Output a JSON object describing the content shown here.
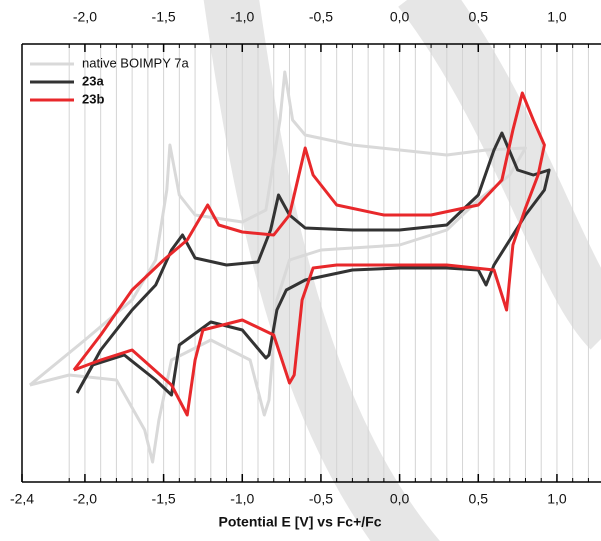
{
  "chart_data": {
    "type": "line",
    "x_label": "Potential E [V] vs Fc+/Fc",
    "xlim": [
      -2.4,
      1.28
    ],
    "ylim": [
      0,
      438
    ],
    "xticks": [
      {
        "value": -2.4,
        "label": "-2,4"
      },
      {
        "value": -2.0,
        "label": "-2,0"
      },
      {
        "value": -1.5,
        "label": "-1,5"
      },
      {
        "value": -1.0,
        "label": "-1,0"
      },
      {
        "value": -0.5,
        "label": "-0,5"
      },
      {
        "value": 0.0,
        "label": "0,0"
      },
      {
        "value": 0.5,
        "label": "0,5"
      },
      {
        "value": 1.0,
        "label": "1,0"
      }
    ],
    "top_xticks": [
      {
        "value": -2.0,
        "label": "-2,0"
      },
      {
        "value": -1.5,
        "label": "-1,5"
      },
      {
        "value": -1.0,
        "label": "-1,0"
      },
      {
        "value": -0.5,
        "label": "-0,5"
      },
      {
        "value": 0.0,
        "label": "0,0"
      },
      {
        "value": 0.5,
        "label": "0,5"
      },
      {
        "value": 1.0,
        "label": "1,0"
      }
    ],
    "grid_x": [
      -2.1,
      -2.0,
      -1.9,
      -1.8,
      -1.7,
      -1.6,
      -1.5,
      -1.4,
      -1.3,
      -1.2,
      -1.1,
      -1.0,
      -0.9,
      -0.8,
      -0.7,
      -0.6,
      -0.5,
      -0.4,
      -0.3,
      -0.2,
      -0.1,
      0.0,
      0.1,
      0.2,
      0.3,
      0.4,
      0.5,
      0.6,
      0.7,
      0.8,
      0.9,
      1.0,
      1.1,
      1.2
    ],
    "legend": "upper left",
    "series": [
      {
        "name": "native BOIMPY 7a",
        "color": "#d9d9d9",
        "x": [
          -2.35,
          -2.0,
          -1.7,
          -1.55,
          -1.48,
          -1.46,
          -1.4,
          -1.3,
          -1.0,
          -0.85,
          -0.76,
          -0.73,
          -0.68,
          -0.6,
          -0.3,
          0,
          0.3,
          0.55,
          0.8,
          0.7,
          0.5,
          0.3,
          0,
          -0.5,
          -0.7,
          -0.78,
          -0.83,
          -0.86,
          -0.95,
          -1.2,
          -1.45,
          -1.53,
          -1.57,
          -1.62,
          -1.8,
          -2.1,
          -2.35
        ],
        "values": [
          97,
          142,
          182,
          222,
          292,
          337,
          287,
          267,
          260,
          272,
          362,
          410,
          362,
          347,
          337,
          332,
          327,
          332,
          334,
          307,
          282,
          252,
          237,
          232,
          222,
          182,
          82,
          67,
          122,
          142,
          122,
          62,
          20,
          52,
          102,
          107,
          97
        ]
      },
      {
        "name": "23a",
        "color": "#333333",
        "x": [
          -2.05,
          -1.9,
          -1.7,
          -1.55,
          -1.45,
          -1.38,
          -1.3,
          -1.1,
          -0.9,
          -0.82,
          -0.77,
          -0.7,
          -0.6,
          -0.3,
          0,
          0.3,
          0.5,
          0.6,
          0.65,
          0.75,
          0.85,
          0.95,
          0.92,
          0.8,
          0.6,
          0.55,
          0.5,
          0.3,
          0,
          -0.3,
          -0.6,
          -0.72,
          -0.78,
          -0.83,
          -0.85,
          -1.0,
          -1.2,
          -1.4,
          -1.45,
          -1.55,
          -1.75,
          -1.95,
          -2.05
        ],
        "values": [
          89,
          132,
          172,
          197,
          232,
          247,
          224,
          217,
          220,
          252,
          287,
          267,
          254,
          252,
          252,
          257,
          287,
          332,
          349,
          312,
          307,
          312,
          292,
          267,
          217,
          197,
          212,
          214,
          214,
          212,
          202,
          192,
          172,
          127,
          124,
          152,
          160,
          137,
          87,
          102,
          127,
          117,
          89
        ]
      },
      {
        "name": "23b",
        "color": "#e8282b",
        "x": [
          -2.07,
          -1.9,
          -1.7,
          -1.5,
          -1.35,
          -1.22,
          -1.15,
          -1.0,
          -0.8,
          -0.7,
          -0.6,
          -0.55,
          -0.4,
          -0.1,
          0.2,
          0.5,
          0.65,
          0.72,
          0.78,
          0.85,
          0.92,
          0.88,
          0.8,
          0.72,
          0.68,
          0.6,
          0.3,
          0,
          -0.4,
          -0.55,
          -0.62,
          -0.67,
          -0.7,
          -0.8,
          -1.0,
          -1.25,
          -1.3,
          -1.35,
          -1.45,
          -1.7,
          -1.9,
          -2.07
        ],
        "values": [
          112,
          147,
          192,
          222,
          242,
          277,
          257,
          250,
          247,
          267,
          334,
          307,
          277,
          267,
          267,
          277,
          302,
          352,
          389,
          362,
          337,
          307,
          274,
          237,
          172,
          212,
          217,
          217,
          217,
          214,
          182,
          107,
          99,
          147,
          162,
          152,
          122,
          67,
          97,
          132,
          122,
          112
        ]
      }
    ]
  }
}
